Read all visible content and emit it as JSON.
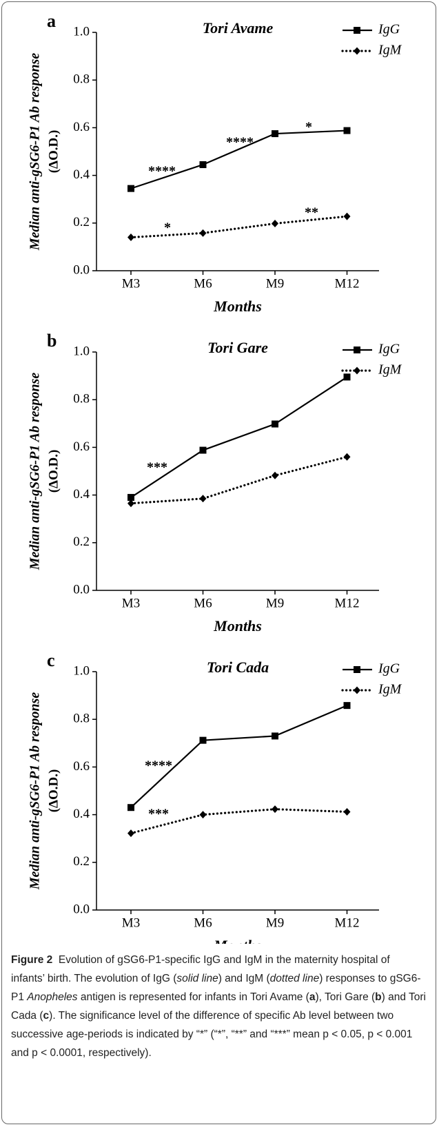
{
  "chart_data": [
    {
      "type": "line",
      "panel": "a",
      "title": "Tori Avame",
      "ylabel": "Median anti-gSG6-P1 Ab response",
      "ylabel2": "(ΔO.D.)",
      "xlabel": "Months",
      "categories": [
        "M3",
        "M6",
        "M9",
        "M12"
      ],
      "series": [
        {
          "name": "IgG",
          "color": "#000000",
          "values": [
            0.345,
            0.445,
            0.575,
            0.588
          ]
        },
        {
          "name": "IgM",
          "color": "#000000",
          "values": [
            0.14,
            0.158,
            0.198,
            0.228
          ]
        }
      ],
      "ylim": [
        0,
        1
      ],
      "yticks": [
        {
          "value": 0,
          "label": "0.0"
        },
        0.2,
        0.4,
        0.6,
        0.8,
        {
          "value": 1,
          "label": "1.0"
        }
      ],
      "legend": "upper right",
      "annotations": [
        "****",
        "****",
        "*",
        "*",
        "**"
      ]
    },
    {
      "type": "line",
      "panel": "b",
      "title": "Tori Gare",
      "ylabel": "Median anti-gSG6-P1 Ab response",
      "ylabel2": "(ΔO.D.)",
      "xlabel": "Months",
      "categories": [
        "M3",
        "M6",
        "M9",
        "M12"
      ],
      "series": [
        {
          "name": "IgG",
          "color": "#000000",
          "values": [
            0.39,
            0.588,
            0.698,
            0.895
          ]
        },
        {
          "name": "IgM",
          "color": "#000000",
          "values": [
            0.365,
            0.385,
            0.482,
            0.56
          ]
        }
      ],
      "ylim": [
        0,
        1
      ],
      "yticks": [
        {
          "value": 0,
          "label": "0.0"
        },
        0.2,
        0.4,
        0.6,
        0.8,
        {
          "value": 1,
          "label": "1.0"
        }
      ],
      "legend": "upper right",
      "annotations": [
        "***"
      ]
    },
    {
      "type": "line",
      "panel": "c",
      "title": "Tori Cada",
      "ylabel": "Median anti-gSG6-P1 Ab response",
      "ylabel2": "(ΔO.D.)",
      "xlabel": "Months",
      "categories": [
        "M3",
        "M6",
        "M9",
        "M12"
      ],
      "series": [
        {
          "name": "IgG",
          "color": "#000000",
          "values": [
            0.43,
            0.712,
            0.73,
            0.858
          ]
        },
        {
          "name": "IgM",
          "color": "#000000",
          "values": [
            0.322,
            0.4,
            0.423,
            0.412
          ]
        }
      ],
      "ylim": [
        0,
        1
      ],
      "yticks": [
        {
          "value": 0,
          "label": "0.0"
        },
        0.2,
        0.4,
        0.6,
        0.8,
        {
          "value": 1,
          "label": "1.0"
        }
      ],
      "legend": "upper right",
      "annotations": [
        "****",
        "***"
      ]
    }
  ],
  "caption": {
    "label": "Figure 2",
    "parts": [
      "Evolution of gSG6-P1-specific IgG and IgM in the maternity hospital of infants’ birth. The evolution of IgG (",
      "solid line",
      ") and IgM (",
      "dotted line",
      ") responses to gSG6-P1 ",
      "Anopheles",
      " antigen is represented for infants in Tori Avame (",
      "a",
      "), Tori Gare (",
      "b",
      ") and Tori Cada (",
      "c",
      "). The significance level of the difference of specific Ab level between two successive age-periods is indicated by “*” (“*”, “**” and “***” mean p < 0.05, p < 0.001 and p < 0.0001, respectively)."
    ]
  }
}
